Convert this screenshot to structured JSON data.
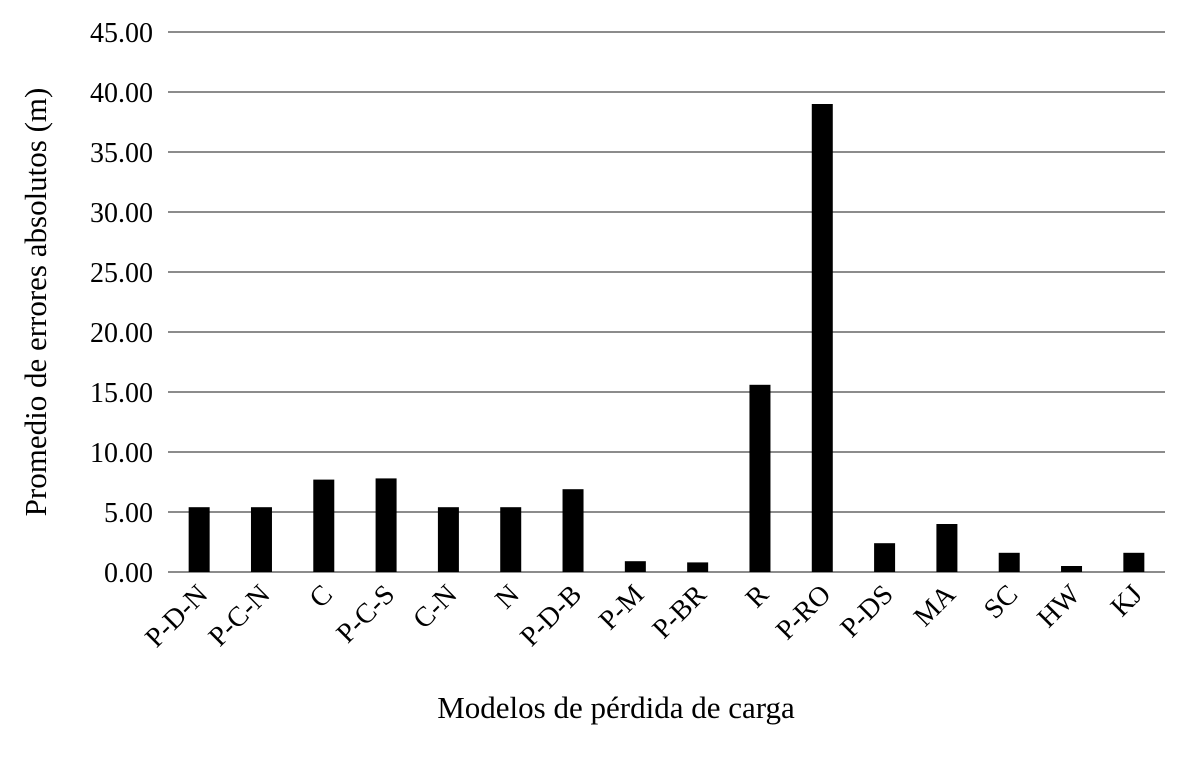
{
  "chart_data": {
    "type": "bar",
    "title": "",
    "xlabel": "Modelos de pérdida de carga",
    "ylabel": "Promedio de errores absolutos (m)",
    "categories": [
      "P-D-N",
      "P-C-N",
      "C",
      "P-C-S",
      "C-N",
      "N",
      "P-D-B",
      "P-M",
      "P-BR",
      "R",
      "P-RO",
      "P-DS",
      "MA",
      "SC",
      "HW",
      "KJ"
    ],
    "values": [
      5.4,
      5.4,
      7.7,
      7.8,
      5.4,
      5.4,
      6.9,
      0.9,
      0.8,
      15.6,
      39.0,
      2.4,
      4.0,
      1.6,
      0.5,
      1.6
    ],
    "ylim": [
      0,
      45
    ],
    "yticks": [
      "0.00",
      "5.00",
      "10.00",
      "15.00",
      "20.00",
      "25.00",
      "30.00",
      "35.00",
      "40.00",
      "45.00"
    ],
    "grid": true,
    "legend": "none",
    "bar_color": "#000000"
  }
}
